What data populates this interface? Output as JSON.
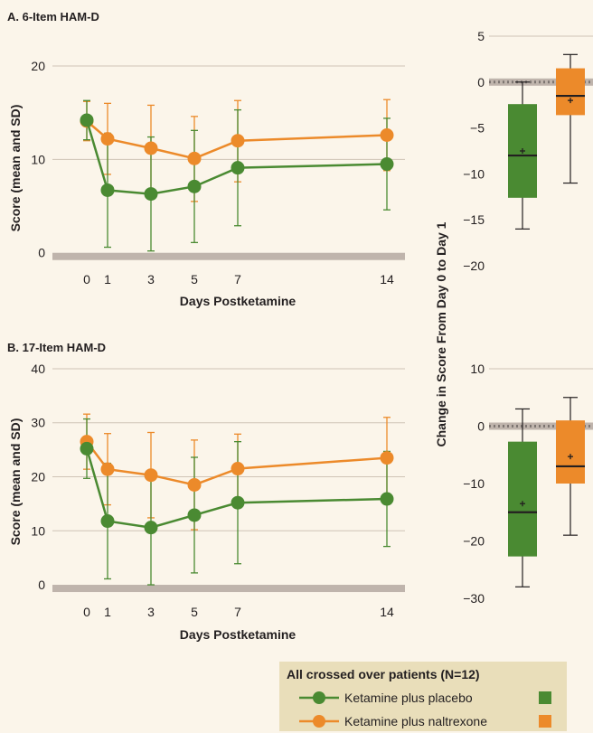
{
  "colors": {
    "background": "#fbf5ea",
    "placebo": "#4a8a32",
    "naltrexone": "#ec8a2a",
    "baseline_band": "#bfb4ac",
    "gridline": "#cfc4b6",
    "legend_bg": "#e9deba"
  },
  "chart_data": [
    {
      "type": "line",
      "title": "A. 6-Item HAM-D",
      "xlabel": "Days Postketamine",
      "ylabel": "Score (mean and SD)",
      "x": [
        0,
        1,
        3,
        5,
        7,
        14
      ],
      "x_tick_labels": [
        "0",
        "1",
        "3",
        "5",
        "7",
        "14"
      ],
      "y_ticks": [
        0,
        10,
        20
      ],
      "ylim": [
        -0.8,
        23
      ],
      "grid": true,
      "series": [
        {
          "name": "Ketamine plus placebo",
          "values": [
            14.2,
            6.7,
            6.3,
            7.1,
            9.1,
            9.5
          ],
          "err_low": [
            12.1,
            0.6,
            0.2,
            1.1,
            2.9,
            4.6
          ],
          "err_high": [
            16.3,
            12.8,
            12.4,
            13.1,
            15.3,
            14.4
          ]
        },
        {
          "name": "Ketamine plus naltrexone",
          "values": [
            14.1,
            12.2,
            11.2,
            10.1,
            12.0,
            12.6
          ],
          "err_low": [
            12.0,
            8.4,
            6.6,
            5.5,
            7.6,
            8.8
          ],
          "err_high": [
            16.2,
            16.0,
            15.8,
            14.6,
            16.3,
            16.4
          ]
        }
      ]
    },
    {
      "type": "line",
      "title": "B. 17-Item HAM-D",
      "xlabel": "Days Postketamine",
      "ylabel": "Score (mean and SD)",
      "x": [
        0,
        1,
        3,
        5,
        7,
        14
      ],
      "x_tick_labels": [
        "0",
        "1",
        "3",
        "5",
        "7",
        "14"
      ],
      "y_ticks": [
        0,
        10,
        20,
        30,
        40
      ],
      "ylim": [
        -1.5,
        41
      ],
      "grid": true,
      "series": [
        {
          "name": "Ketamine plus placebo",
          "values": [
            25.2,
            11.8,
            10.6,
            12.9,
            15.2,
            15.9
          ],
          "err_low": [
            19.7,
            1.1,
            0.0,
            2.2,
            3.9,
            7.1
          ],
          "err_high": [
            30.7,
            22.5,
            21.2,
            23.6,
            26.5,
            24.7
          ]
        },
        {
          "name": "Ketamine plus naltrexone",
          "values": [
            26.5,
            21.4,
            20.3,
            18.5,
            21.5,
            23.5
          ],
          "err_low": [
            21.4,
            14.8,
            12.4,
            10.2,
            15.1,
            16.0
          ],
          "err_high": [
            31.6,
            28.0,
            28.2,
            26.8,
            27.9,
            31.0
          ]
        }
      ]
    },
    {
      "type": "box",
      "ylabel": "Change in Score From Day 0 to Day 1",
      "y_ticks": [
        5,
        0,
        -5,
        -10,
        -15,
        -20
      ],
      "y_tick_labels": [
        "5",
        "0",
        "−5",
        "−10",
        "−15",
        "−20"
      ],
      "ylim": [
        -20,
        5
      ],
      "boxes": [
        {
          "series": "Ketamine plus placebo",
          "min": -16,
          "q1": -12.6,
          "median": -8,
          "q3": -2.4,
          "max": 0,
          "mean": -7.5
        },
        {
          "series": "Ketamine plus naltrexone",
          "min": -11,
          "q1": -3.6,
          "median": -1.5,
          "q3": 1.5,
          "max": 3,
          "mean": -2
        }
      ]
    },
    {
      "type": "box",
      "y_ticks": [
        10,
        0,
        -10,
        -20,
        -30
      ],
      "y_tick_labels": [
        "10",
        "0",
        "−10",
        "−20",
        "−30"
      ],
      "ylim": [
        -30,
        10
      ],
      "boxes": [
        {
          "series": "Ketamine plus placebo",
          "min": -28,
          "q1": -22.7,
          "median": -15,
          "q3": -2.7,
          "max": 3,
          "mean": -13.5
        },
        {
          "series": "Ketamine plus naltrexone",
          "min": -19,
          "q1": -10,
          "median": -7,
          "q3": 1,
          "max": 5,
          "mean": -5.3
        }
      ]
    }
  ],
  "legend": {
    "title": "All crossed over patients (N=12)",
    "items": [
      {
        "label": "Ketamine plus placebo",
        "series": "placebo"
      },
      {
        "label": "Ketamine plus naltrexone",
        "series": "naltrexone"
      }
    ]
  }
}
